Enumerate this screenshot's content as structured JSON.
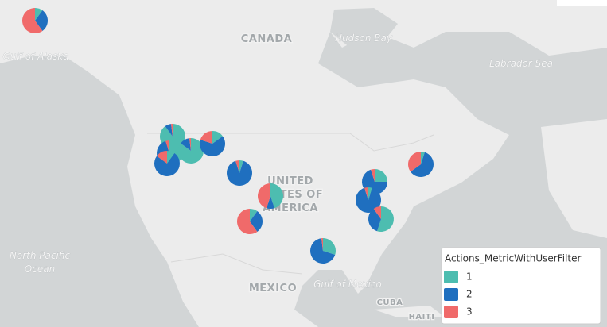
{
  "map": {
    "labels": [
      "CANADA",
      "Hudson Bay",
      "Gulf of Alaska",
      "Labrador Sea",
      "North Pacific",
      "Ocean",
      "UNITED",
      "STATES OF",
      "AMERICA",
      "MEXICO",
      "Gulf of Mexico",
      "CUBA",
      "HAITI"
    ]
  },
  "legend": {
    "title": "Actions_MetricWithUserFilter",
    "items": [
      {
        "label": "1",
        "color": "#4dbdb0"
      },
      {
        "label": "2",
        "color": "#1f6fbf"
      },
      {
        "label": "3",
        "color": "#f06a6a"
      }
    ]
  },
  "pies": [
    {
      "values": [
        10,
        30,
        60
      ]
    },
    {
      "values": [
        90,
        8,
        2
      ]
    },
    {
      "values": [
        70,
        25,
        5
      ]
    },
    {
      "values": [
        85,
        13,
        2
      ]
    },
    {
      "values": [
        15,
        65,
        20
      ]
    },
    {
      "values": [
        10,
        75,
        15
      ]
    },
    {
      "values": [
        5,
        90,
        5
      ]
    },
    {
      "values": [
        45,
        10,
        45
      ]
    },
    {
      "values": [
        10,
        30,
        60
      ]
    },
    {
      "values": [
        25,
        70,
        5
      ]
    },
    {
      "values": [
        5,
        60,
        35
      ]
    },
    {
      "values": [
        5,
        90,
        5
      ]
    },
    {
      "values": [
        55,
        35,
        10
      ]
    },
    {
      "values": [
        30,
        68,
        2
      ]
    }
  ]
}
